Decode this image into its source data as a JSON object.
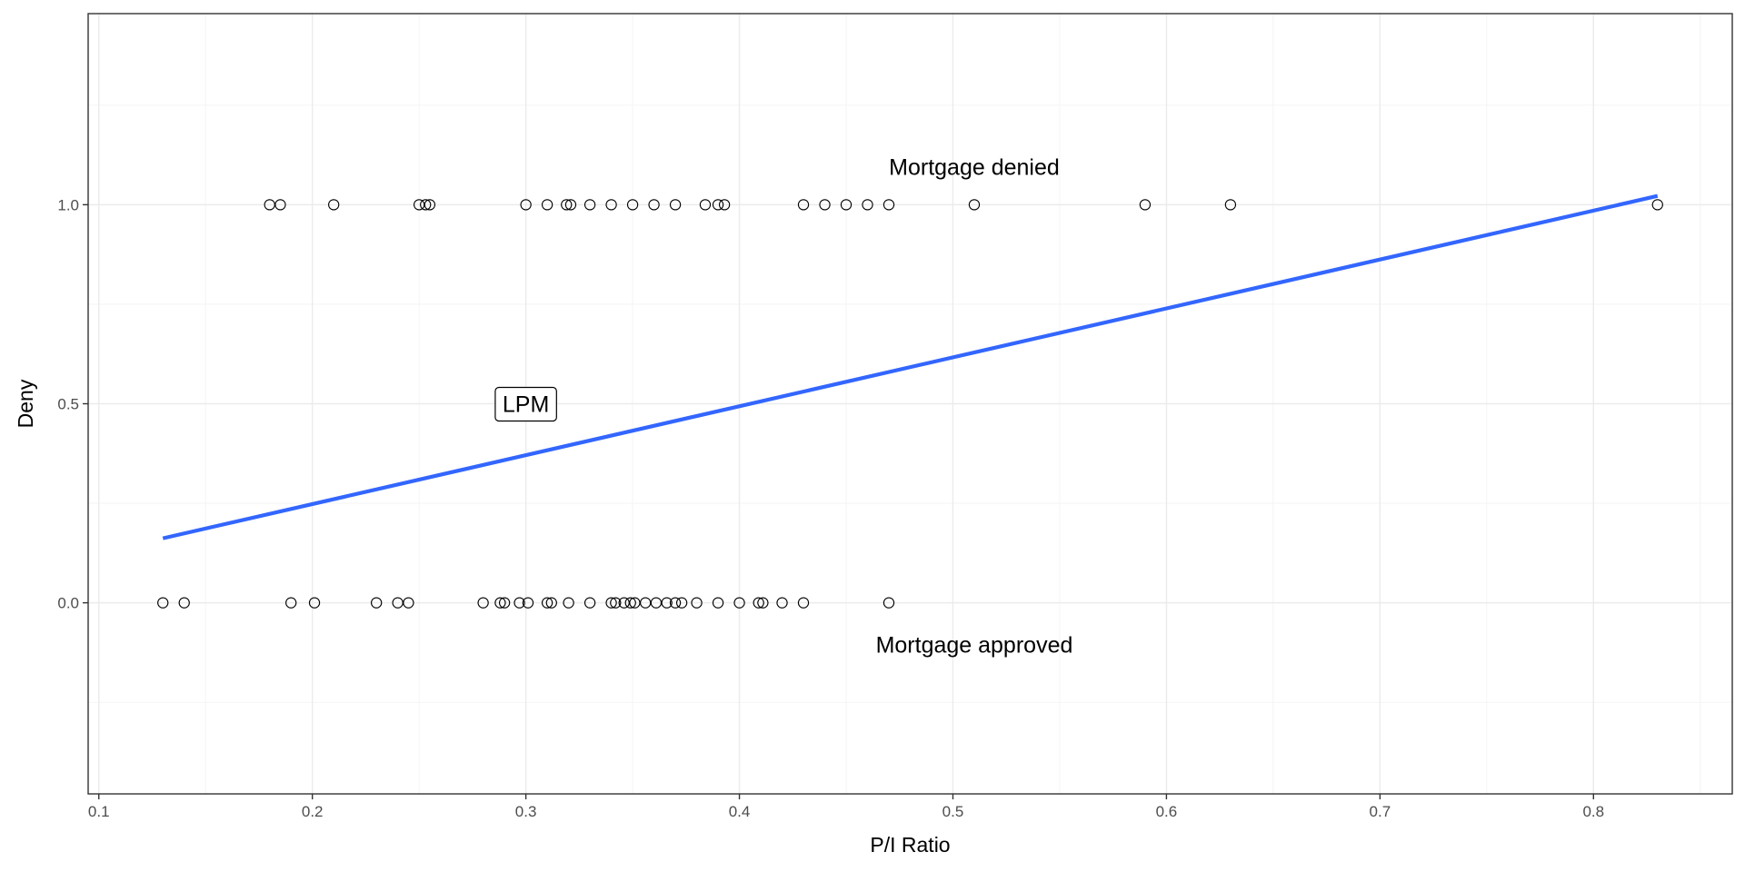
{
  "chart_data": {
    "type": "scatter",
    "xlabel": "P/I Ratio",
    "ylabel": "Deny",
    "xlim": [
      0.095,
      0.865
    ],
    "ylim": [
      -0.48,
      1.48
    ],
    "x_ticks": [
      0.1,
      0.2,
      0.3,
      0.4,
      0.5,
      0.6,
      0.7,
      0.8
    ],
    "x_tick_labels": [
      "0.1",
      "0.2",
      "0.3",
      "0.4",
      "0.5",
      "0.6",
      "0.7",
      "0.8"
    ],
    "y_ticks": [
      0.0,
      0.5,
      1.0
    ],
    "y_tick_labels": [
      "0.0",
      "0.5",
      "1.0"
    ],
    "grid": true,
    "series": [
      {
        "type": "scatter",
        "marker": "open-circle",
        "color": "#000000",
        "points": [
          {
            "x": 0.13,
            "y": 0
          },
          {
            "x": 0.14,
            "y": 0
          },
          {
            "x": 0.19,
            "y": 0
          },
          {
            "x": 0.201,
            "y": 0
          },
          {
            "x": 0.23,
            "y": 0
          },
          {
            "x": 0.24,
            "y": 0
          },
          {
            "x": 0.245,
            "y": 0
          },
          {
            "x": 0.28,
            "y": 0
          },
          {
            "x": 0.288,
            "y": 0
          },
          {
            "x": 0.29,
            "y": 0
          },
          {
            "x": 0.297,
            "y": 0
          },
          {
            "x": 0.301,
            "y": 0
          },
          {
            "x": 0.31,
            "y": 0
          },
          {
            "x": 0.312,
            "y": 0
          },
          {
            "x": 0.32,
            "y": 0
          },
          {
            "x": 0.33,
            "y": 0
          },
          {
            "x": 0.34,
            "y": 0
          },
          {
            "x": 0.342,
            "y": 0
          },
          {
            "x": 0.346,
            "y": 0
          },
          {
            "x": 0.349,
            "y": 0
          },
          {
            "x": 0.351,
            "y": 0
          },
          {
            "x": 0.356,
            "y": 0
          },
          {
            "x": 0.361,
            "y": 0
          },
          {
            "x": 0.366,
            "y": 0
          },
          {
            "x": 0.37,
            "y": 0
          },
          {
            "x": 0.373,
            "y": 0
          },
          {
            "x": 0.38,
            "y": 0
          },
          {
            "x": 0.39,
            "y": 0
          },
          {
            "x": 0.4,
            "y": 0
          },
          {
            "x": 0.409,
            "y": 0
          },
          {
            "x": 0.411,
            "y": 0
          },
          {
            "x": 0.42,
            "y": 0
          },
          {
            "x": 0.43,
            "y": 0
          },
          {
            "x": 0.47,
            "y": 0
          },
          {
            "x": 0.18,
            "y": 1
          },
          {
            "x": 0.185,
            "y": 1
          },
          {
            "x": 0.21,
            "y": 1
          },
          {
            "x": 0.25,
            "y": 1
          },
          {
            "x": 0.253,
            "y": 1
          },
          {
            "x": 0.255,
            "y": 1
          },
          {
            "x": 0.3,
            "y": 1
          },
          {
            "x": 0.31,
            "y": 1
          },
          {
            "x": 0.319,
            "y": 1
          },
          {
            "x": 0.321,
            "y": 1
          },
          {
            "x": 0.33,
            "y": 1
          },
          {
            "x": 0.34,
            "y": 1
          },
          {
            "x": 0.35,
            "y": 1
          },
          {
            "x": 0.36,
            "y": 1
          },
          {
            "x": 0.37,
            "y": 1
          },
          {
            "x": 0.384,
            "y": 1
          },
          {
            "x": 0.39,
            "y": 1
          },
          {
            "x": 0.393,
            "y": 1
          },
          {
            "x": 0.43,
            "y": 1
          },
          {
            "x": 0.44,
            "y": 1
          },
          {
            "x": 0.45,
            "y": 1
          },
          {
            "x": 0.46,
            "y": 1
          },
          {
            "x": 0.47,
            "y": 1
          },
          {
            "x": 0.51,
            "y": 1
          },
          {
            "x": 0.59,
            "y": 1
          },
          {
            "x": 0.63,
            "y": 1
          },
          {
            "x": 0.83,
            "y": 1
          }
        ]
      },
      {
        "type": "line",
        "color": "#3366ff",
        "points": [
          {
            "x": 0.13,
            "y": 0.162
          },
          {
            "x": 0.83,
            "y": 1.022
          }
        ]
      }
    ],
    "annotations": [
      {
        "text": "Mortgage denied",
        "x": 0.51,
        "y": 1.095
      },
      {
        "text": "Mortgage approved",
        "x": 0.51,
        "y": -0.105
      },
      {
        "text": "LPM",
        "x": 0.3,
        "y": 0.5,
        "boxed": true
      }
    ]
  }
}
